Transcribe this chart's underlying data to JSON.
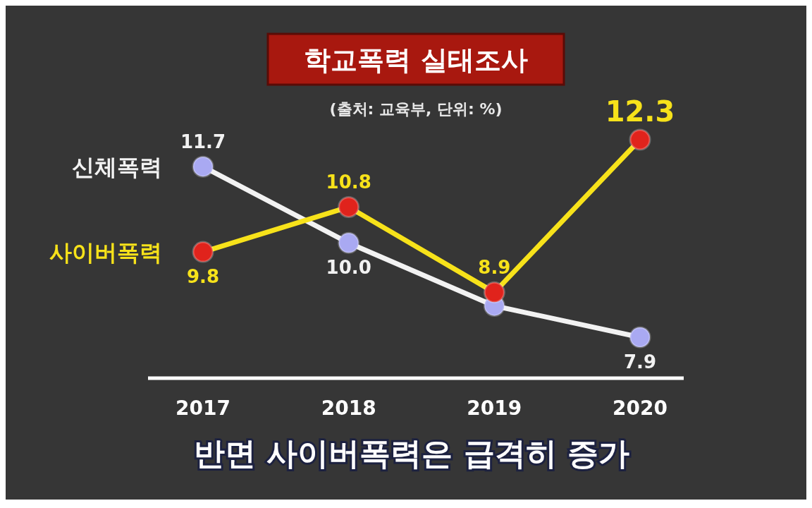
{
  "chart_data": {
    "type": "line",
    "title": "학교폭력 실태조사",
    "subtitle": "(출처: 교육부, 단위: %)",
    "categories": [
      "2017",
      "2018",
      "2019",
      "2020"
    ],
    "series": [
      {
        "name": "신체폭력",
        "color": "#f2f2f2",
        "colors": [
          "#a9a9f2",
          "#a9a9f2",
          "#a9a9f2",
          "#a9a9f2"
        ],
        "values": [
          11.7,
          10.0,
          8.6,
          7.9
        ],
        "value_labels": [
          "11.7",
          "10.0",
          null,
          "7.9"
        ]
      },
      {
        "name": "사이버폭력",
        "color": "#f7e21a",
        "colors": [
          "#e0231c",
          "#e0231c",
          "#e0231c",
          "#e0231c"
        ],
        "values": [
          9.8,
          10.8,
          8.9,
          12.3
        ],
        "value_labels": [
          "9.8",
          "10.8",
          "8.9",
          "12.3"
        ]
      }
    ],
    "marker": "circle",
    "annotations": [
      "반면 사이버폭력은 급격히 증가"
    ]
  }
}
